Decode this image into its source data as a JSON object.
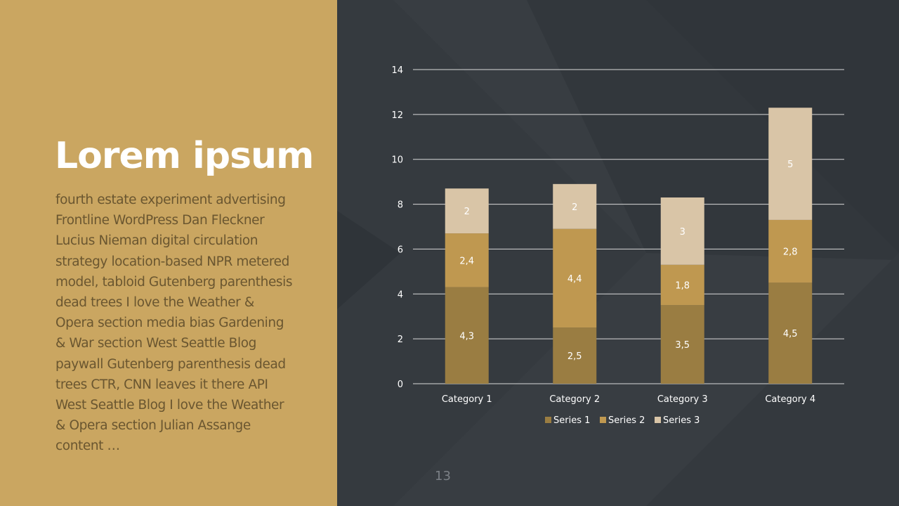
{
  "slide": {
    "title": "Lorem ipsum",
    "body": "fourth estate experiment advertising Frontline WordPress Dan Fleckner Lucius Nieman digital circulation strategy location-based NPR metered model, tabloid Gutenberg parenthesis dead trees I love the Weather & Opera section media bias Gardening & War section West Seattle Blog paywall Gutenberg parenthesis dead trees CTR, CNN leaves it there API West Seattle Blog I love the Weather & Opera section Julian Assange content …",
    "page_number": "13"
  },
  "colors": {
    "left_panel": "#caa661",
    "right_panel": "#383d42",
    "series_1": "#9a7d42",
    "series_2": "#bf9850",
    "series_3": "#d9c5a7"
  },
  "chart_data": {
    "type": "bar",
    "stacked": true,
    "categories": [
      "Category 1",
      "Category 2",
      "Category 3",
      "Category 4"
    ],
    "series": [
      {
        "name": "Series 1",
        "values": [
          4.3,
          2.5,
          3.5,
          4.5
        ],
        "labels": [
          "4,3",
          "2,5",
          "3,5",
          "4,5"
        ],
        "color": "#9a7d42"
      },
      {
        "name": "Series 2",
        "values": [
          2.4,
          4.4,
          1.8,
          2.8
        ],
        "labels": [
          "2,4",
          "4,4",
          "1,8",
          "2,8"
        ],
        "color": "#bf9850"
      },
      {
        "name": "Series 3",
        "values": [
          2,
          2,
          3,
          5
        ],
        "labels": [
          "2",
          "2",
          "3",
          "5"
        ],
        "color": "#d9c5a7"
      }
    ],
    "ylim": [
      0,
      14
    ],
    "yticks": [
      0,
      2,
      4,
      6,
      8,
      10,
      12,
      14
    ],
    "grid": true,
    "legend": "bottom"
  }
}
